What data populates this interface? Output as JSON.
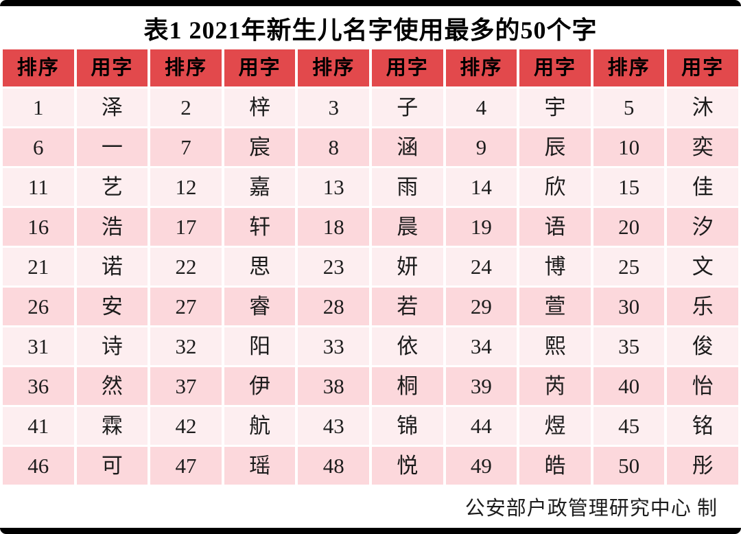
{
  "page": {
    "title": "表1 2021年新生儿名字使用最多的50个字",
    "footer_credit": "公安部户政管理研究中心 制"
  },
  "colors": {
    "header_bg": "#e2494c",
    "row_light": "#fdeef0",
    "row_dark": "#fcd8dc",
    "edge_bar": "#000000",
    "text": "#1c1c1c"
  },
  "table": {
    "column_headers": [
      "排序",
      "用字",
      "排序",
      "用字",
      "排序",
      "用字",
      "排序",
      "用字",
      "排序",
      "用字"
    ],
    "rows": [
      [
        "1",
        "泽",
        "2",
        "梓",
        "3",
        "子",
        "4",
        "宇",
        "5",
        "沐"
      ],
      [
        "6",
        "一",
        "7",
        "宸",
        "8",
        "涵",
        "9",
        "辰",
        "10",
        "奕"
      ],
      [
        "11",
        "艺",
        "12",
        "嘉",
        "13",
        "雨",
        "14",
        "欣",
        "15",
        "佳"
      ],
      [
        "16",
        "浩",
        "17",
        "轩",
        "18",
        "晨",
        "19",
        "语",
        "20",
        "汐"
      ],
      [
        "21",
        "诺",
        "22",
        "思",
        "23",
        "妍",
        "24",
        "博",
        "25",
        "文"
      ],
      [
        "26",
        "安",
        "27",
        "睿",
        "28",
        "若",
        "29",
        "萱",
        "30",
        "乐"
      ],
      [
        "31",
        "诗",
        "32",
        "阳",
        "33",
        "依",
        "34",
        "熙",
        "35",
        "俊"
      ],
      [
        "36",
        "然",
        "37",
        "伊",
        "38",
        "桐",
        "39",
        "芮",
        "40",
        "怡"
      ],
      [
        "41",
        "霖",
        "42",
        "航",
        "43",
        "锦",
        "44",
        "煜",
        "45",
        "铭"
      ],
      [
        "46",
        "可",
        "47",
        "瑶",
        "48",
        "悦",
        "49",
        "皓",
        "50",
        "彤"
      ]
    ]
  }
}
